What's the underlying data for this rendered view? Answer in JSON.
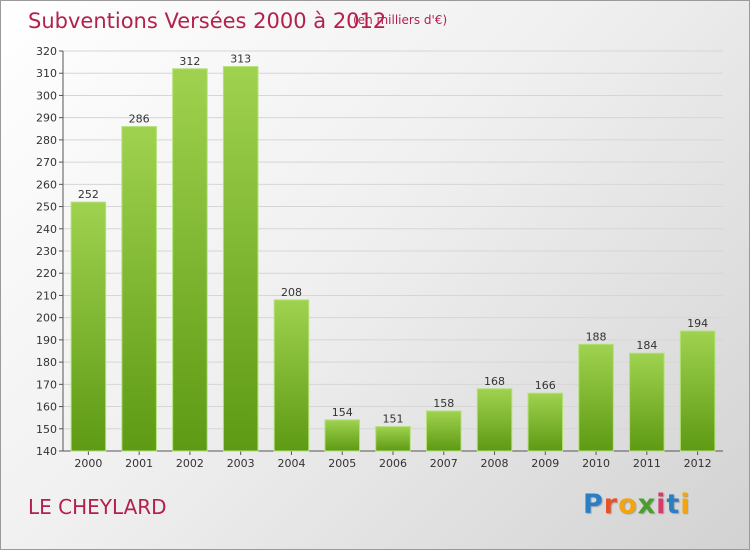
{
  "chart_data": {
    "type": "bar",
    "title": "Subventions Versées 2000 à 2012",
    "subtitle": "(en milliers d'€)",
    "categories": [
      "2000",
      "2001",
      "2002",
      "2003",
      "2004",
      "2005",
      "2006",
      "2007",
      "2008",
      "2009",
      "2010",
      "2011",
      "2012"
    ],
    "values": [
      252,
      286,
      312,
      313,
      208,
      154,
      151,
      158,
      168,
      166,
      188,
      184,
      194
    ],
    "ylim": [
      140,
      320
    ],
    "yticks": [
      140,
      150,
      160,
      170,
      180,
      190,
      200,
      210,
      220,
      230,
      240,
      250,
      260,
      270,
      280,
      290,
      300,
      310,
      320
    ],
    "grid": true,
    "bar_color": "#7dbb2c"
  },
  "footer": {
    "place": "LE CHEYLARD"
  },
  "logo": {
    "letters": [
      {
        "ch": "P",
        "color": "#2a7fc4"
      },
      {
        "ch": "r",
        "color": "#e8522a"
      },
      {
        "ch": "o",
        "color": "#f2a413"
      },
      {
        "ch": "x",
        "color": "#4a9e2f"
      },
      {
        "ch": "i",
        "color": "#d63a6a"
      },
      {
        "ch": "t",
        "color": "#2a7fc4"
      },
      {
        "ch": "i",
        "color": "#f2a413"
      }
    ]
  }
}
